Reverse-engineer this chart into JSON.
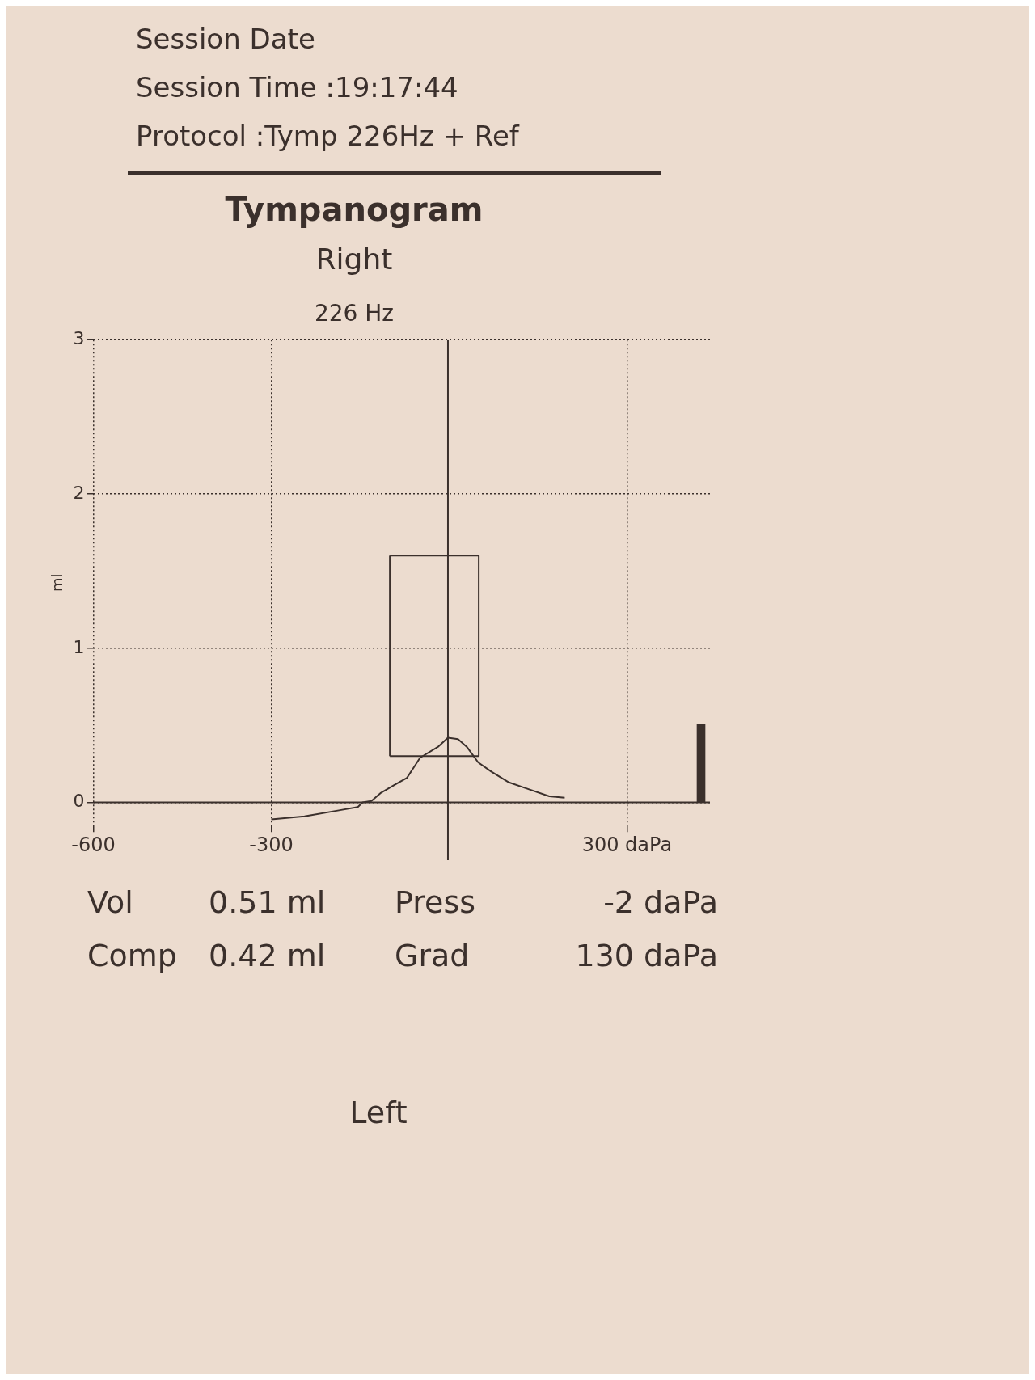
{
  "chart_data": {
    "type": "line",
    "title": "Tympanogram",
    "subtitle": "Right",
    "ylabel": "ml",
    "annotations": [
      "Session Date",
      "Session Time :19:17:44",
      "Protocol :Tymp 226Hz + Ref",
      "226 Hz",
      "Vol",
      "0.51 ml",
      "Press",
      "-2 daPa",
      "Comp",
      "0.42 ml",
      "Grad",
      "130 daPa",
      "Left"
    ],
    "series": [
      {
        "color": "#3b302c",
        "x": [
          -300,
          -244,
          -184,
          -154,
          -146,
          -131,
          -116,
          -94,
          -71,
          -49,
          -19,
          -2,
          15,
          30,
          49,
          71,
          101,
          131,
          169,
          195
        ],
        "values": [
          -0.11,
          -0.09,
          -0.05,
          -0.03,
          0,
          0.01,
          0.06,
          0.11,
          0.16,
          0.29,
          0.36,
          0.42,
          0.41,
          0.36,
          0.26,
          0.2,
          0.13,
          0.09,
          0.04,
          0.03
        ]
      },
      {
        "color": "#3b302c",
        "x": [
          -100,
          50
        ],
        "values": [
          1.6,
          1.6
        ]
      },
      {
        "color": "#3b302c",
        "x": [
          -100,
          50
        ],
        "values": [
          0.3,
          0.3
        ]
      },
      {
        "color": "#3b302c",
        "x": [
          -100,
          -100
        ],
        "values": [
          0.3,
          1.6
        ]
      },
      {
        "color": "#3b302c",
        "x": [
          50,
          50
        ],
        "values": [
          0.3,
          1.6
        ]
      },
      {
        "type": "bar",
        "color": "#3b302c",
        "x": [
          425
        ],
        "values": [
          0.51
        ]
      }
    ],
    "ref_lines": [
      {
        "axis": "x",
        "value": -2
      }
    ],
    "xlim": [
      -600,
      440
    ],
    "xticks": [
      -600,
      -300,
      {
        "value": 300,
        "label": "300 daPa"
      }
    ],
    "ylim": [
      -0.15,
      3
    ],
    "yticks": [
      0,
      1,
      2,
      3
    ],
    "grid": true,
    "marker": "none",
    "line_style": "solid"
  }
}
